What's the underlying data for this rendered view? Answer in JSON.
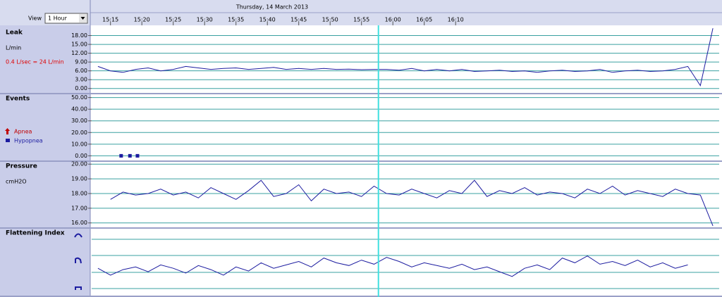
{
  "toolbar": {
    "view_label": "View",
    "view_value": "1 Hour"
  },
  "time_axis": {
    "title": "Thursday, 14 March 2013",
    "xlim": [
      912,
      1012
    ],
    "xticks": [
      {
        "value": 915,
        "label": "15:15"
      },
      {
        "value": 920,
        "label": "15:20"
      },
      {
        "value": 925,
        "label": "15:25"
      },
      {
        "value": 930,
        "label": "15:30"
      },
      {
        "value": 935,
        "label": "15:35"
      },
      {
        "value": 940,
        "label": "15:40"
      },
      {
        "value": 945,
        "label": "15:45"
      },
      {
        "value": 950,
        "label": "15:50"
      },
      {
        "value": 955,
        "label": "15:55"
      },
      {
        "value": 960,
        "label": "16:00"
      },
      {
        "value": 965,
        "label": "16:05"
      },
      {
        "value": 970,
        "label": "16:10"
      }
    ],
    "cursor": 957.7
  },
  "chart_data": [
    {
      "type": "line",
      "title": "Leak",
      "unit": "L/min",
      "note": "0.4 L/sec = 24 L/min",
      "color": "#1c1ca0",
      "grid": true,
      "ylim": [
        -1.5,
        21
      ],
      "yticks": [
        {
          "value": 0,
          "label": "0.00"
        },
        {
          "value": 3,
          "label": "3.00"
        },
        {
          "value": 6,
          "label": "6.00"
        },
        {
          "value": 9,
          "label": "9.00"
        },
        {
          "value": 12,
          "label": "12.00"
        },
        {
          "value": 15,
          "label": "15.00"
        },
        {
          "value": 18,
          "label": "18.00"
        }
      ],
      "x": [
        913,
        915,
        917,
        919,
        921,
        923,
        925,
        927,
        929,
        931,
        933,
        935,
        937,
        939,
        941,
        943,
        945,
        947,
        949,
        951,
        953,
        955,
        957,
        959,
        961,
        963,
        965,
        967,
        969,
        971,
        973,
        975,
        977,
        979,
        981,
        983,
        985,
        987,
        989,
        991,
        993,
        995,
        997,
        999,
        1001,
        1003,
        1005,
        1007,
        1009,
        1011
      ],
      "values": [
        7.5,
        6.0,
        5.5,
        6.5,
        7.0,
        6.0,
        6.5,
        7.5,
        7.0,
        6.5,
        6.8,
        7.0,
        6.5,
        6.8,
        7.2,
        6.5,
        6.8,
        6.5,
        6.8,
        6.5,
        6.6,
        6.4,
        6.5,
        6.5,
        6.2,
        6.8,
        6.0,
        6.5,
        6.0,
        6.5,
        5.8,
        6.0,
        6.2,
        5.8,
        6.0,
        5.5,
        6.0,
        6.2,
        5.8,
        6.0,
        6.5,
        5.5,
        6.0,
        6.2,
        5.8,
        6.0,
        6.5,
        7.5,
        1.0,
        20.5
      ]
    },
    {
      "type": "scatter",
      "title": "Events",
      "color": "#1c1ca0",
      "grid": true,
      "ylim": [
        -4,
        54
      ],
      "yticks": [
        {
          "value": 0,
          "label": "0.00"
        },
        {
          "value": 10,
          "label": "10.00"
        },
        {
          "value": 20,
          "label": "20.00"
        },
        {
          "value": 30,
          "label": "30.00"
        },
        {
          "value": 40,
          "label": "40.00"
        },
        {
          "value": 50,
          "label": "50.00"
        }
      ],
      "series": [
        {
          "name": "Apnea",
          "color": "#c00000",
          "x": [],
          "values": []
        },
        {
          "name": "Hypopnea",
          "color": "#1c1ca0",
          "x": [
            916.7,
            918.1,
            919.3
          ],
          "values": [
            0,
            0,
            0
          ]
        }
      ]
    },
    {
      "type": "line",
      "title": "Pressure",
      "unit": "cmH2O",
      "color": "#1c1ca0",
      "grid": true,
      "ylim": [
        15.7,
        20.25
      ],
      "yticks": [
        {
          "value": 16,
          "label": "16.00"
        },
        {
          "value": 17,
          "label": "17.00"
        },
        {
          "value": 18,
          "label": "18.00"
        },
        {
          "value": 19,
          "label": "19.00"
        },
        {
          "value": 20,
          "label": "20.00"
        }
      ],
      "x": [
        913,
        915,
        917,
        919,
        921,
        923,
        925,
        927,
        929,
        931,
        933,
        935,
        937,
        939,
        941,
        943,
        945,
        947,
        949,
        951,
        953,
        955,
        957,
        959,
        961,
        963,
        965,
        967,
        969,
        971,
        973,
        975,
        977,
        979,
        981,
        983,
        985,
        987,
        989,
        991,
        993,
        995,
        997,
        999,
        1001,
        1003,
        1005,
        1007,
        1009,
        1011
      ],
      "values": [
        null,
        17.6,
        18.1,
        17.9,
        18.0,
        18.3,
        17.9,
        18.1,
        17.7,
        18.4,
        18.0,
        17.6,
        18.2,
        18.9,
        17.8,
        18.0,
        18.6,
        17.5,
        18.3,
        18.0,
        18.1,
        17.8,
        18.5,
        18.0,
        17.9,
        18.3,
        18.0,
        17.7,
        18.2,
        18.0,
        18.9,
        17.8,
        18.2,
        18.0,
        18.4,
        17.9,
        18.1,
        18.0,
        17.7,
        18.3,
        18.0,
        18.5,
        17.9,
        18.2,
        18.0,
        17.8,
        18.3,
        18.0,
        17.9,
        15.8
      ]
    },
    {
      "type": "line",
      "title": "Flattening Index",
      "color": "#1c1ca0",
      "ylim": [
        0,
        1
      ],
      "x": [
        913,
        915,
        917,
        919,
        921,
        923,
        925,
        927,
        929,
        931,
        933,
        935,
        937,
        939,
        941,
        943,
        945,
        947,
        949,
        951,
        953,
        955,
        957,
        959,
        961,
        963,
        965,
        967,
        969,
        971,
        973,
        975,
        977,
        979,
        981,
        983,
        985,
        987,
        989,
        991,
        993,
        995,
        997,
        999,
        1001,
        1003,
        1005,
        1007,
        1009,
        1011
      ],
      "values": [
        0.4,
        0.3,
        0.38,
        0.42,
        0.35,
        0.45,
        0.4,
        0.33,
        0.44,
        0.38,
        0.3,
        0.42,
        0.36,
        0.48,
        0.4,
        0.45,
        0.5,
        0.42,
        0.55,
        0.48,
        0.44,
        0.52,
        0.46,
        0.56,
        0.5,
        0.42,
        0.48,
        0.44,
        0.4,
        0.46,
        0.38,
        0.42,
        0.35,
        0.28,
        0.4,
        0.45,
        0.38,
        0.55,
        0.48,
        0.58,
        0.46,
        0.5,
        0.44,
        0.52,
        0.42,
        0.48,
        0.4,
        0.45,
        null,
        null
      ]
    }
  ]
}
